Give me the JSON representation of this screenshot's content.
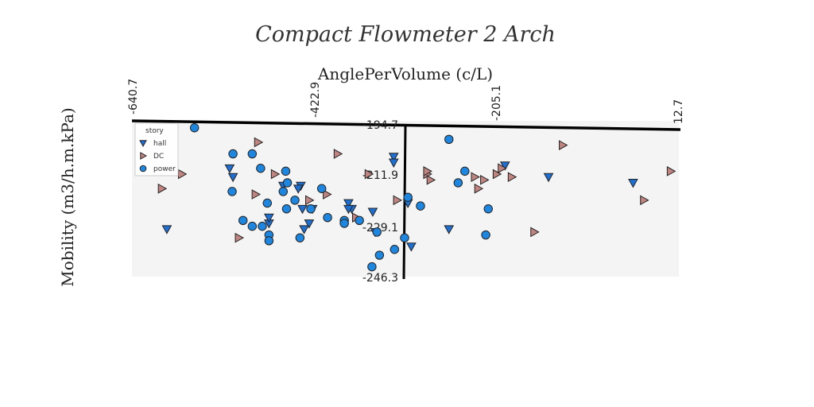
{
  "chart_data": {
    "type": "scatter",
    "title": "Compact Flowmeter 2 Arch",
    "xlabel": "AnglePerVolume (c/L)",
    "ylabel": "Mobility (m3/h.m.kPa)",
    "xlim": [
      -640.7,
      12.7
    ],
    "ylim": [
      -246.3,
      -194.7
    ],
    "x_ticks": [
      "-640.7",
      "-422.9",
      "-205.1",
      "12.7"
    ],
    "y_ticks": [
      "-194.7",
      "-211.9",
      "-229.1",
      "-246.3"
    ],
    "grid": false,
    "legend": {
      "title": "story",
      "placement": "top-left"
    },
    "series": [
      {
        "name": "hall",
        "marker": "triangle-down",
        "color": "#1f6fd1",
        "points": [
          [
            -599,
            -231
          ],
          [
            -520,
            -213
          ],
          [
            -524,
            -210
          ],
          [
            -460,
            -216
          ],
          [
            -439,
            -216
          ],
          [
            -437,
            -224
          ],
          [
            -425,
            -224
          ],
          [
            -442,
            -217
          ],
          [
            -477,
            -229
          ],
          [
            -477,
            -227
          ],
          [
            -435,
            -231
          ],
          [
            -429,
            -229
          ],
          [
            -382,
            -222
          ],
          [
            -378,
            -224
          ],
          [
            -353,
            -225
          ],
          [
            -350,
            -232
          ],
          [
            -382,
            -224
          ],
          [
            -328,
            -206
          ],
          [
            -328,
            -208
          ],
          [
            -311,
            -222
          ],
          [
            -307,
            -237
          ],
          [
            -262,
            -231
          ],
          [
            -195,
            -209
          ],
          [
            -143,
            -213
          ],
          [
            -42,
            -215
          ]
        ]
      },
      {
        "name": "DC",
        "marker": "triangle-right",
        "color": "#c08581",
        "points": [
          [
            -581,
            -212
          ],
          [
            -605,
            -217
          ],
          [
            -490,
            -201
          ],
          [
            -470,
            -212
          ],
          [
            -493,
            -219
          ],
          [
            -513,
            -234
          ],
          [
            -429,
            -221
          ],
          [
            -408,
            -219
          ],
          [
            -395,
            -205
          ],
          [
            -358,
            -212
          ],
          [
            -373,
            -227
          ],
          [
            -324,
            -221
          ],
          [
            -288,
            -212
          ],
          [
            -288,
            -211
          ],
          [
            -284,
            -214
          ],
          [
            -227,
            -217
          ],
          [
            -231,
            -213
          ],
          [
            -220,
            -214
          ],
          [
            -205,
            -212
          ],
          [
            -199,
            -210
          ],
          [
            -187,
            -213
          ],
          [
            -160,
            -232
          ],
          [
            -126,
            -202
          ],
          [
            -29,
            -221
          ],
          [
            3,
            -211
          ]
        ]
      },
      {
        "name": "power",
        "marker": "circle",
        "color": "#1f86e0",
        "points": [
          [
            -566,
            -196
          ],
          [
            -520,
            -205
          ],
          [
            -497,
            -205
          ],
          [
            -487,
            -210
          ],
          [
            -457,
            -211
          ],
          [
            -414,
            -217
          ],
          [
            -455,
            -215
          ],
          [
            -521,
            -218
          ],
          [
            -460,
            -218
          ],
          [
            -479,
            -222
          ],
          [
            -456,
            -224
          ],
          [
            -446,
            -221
          ],
          [
            -427,
            -224
          ],
          [
            -407,
            -227
          ],
          [
            -508,
            -228
          ],
          [
            -497,
            -230
          ],
          [
            -485,
            -230
          ],
          [
            -477,
            -233
          ],
          [
            -477,
            -235
          ],
          [
            -440,
            -234
          ],
          [
            -387,
            -228
          ],
          [
            -387,
            -229
          ],
          [
            -369,
            -228
          ],
          [
            -348,
            -232
          ],
          [
            -327,
            -238
          ],
          [
            -345,
            -240
          ],
          [
            -354,
            -244
          ],
          [
            -315,
            -234
          ],
          [
            -311,
            -220
          ],
          [
            -296,
            -223
          ],
          [
            -262,
            -200
          ],
          [
            -251,
            -215
          ],
          [
            -243,
            -211
          ],
          [
            -215,
            -224
          ],
          [
            -218,
            -233
          ]
        ]
      }
    ]
  }
}
